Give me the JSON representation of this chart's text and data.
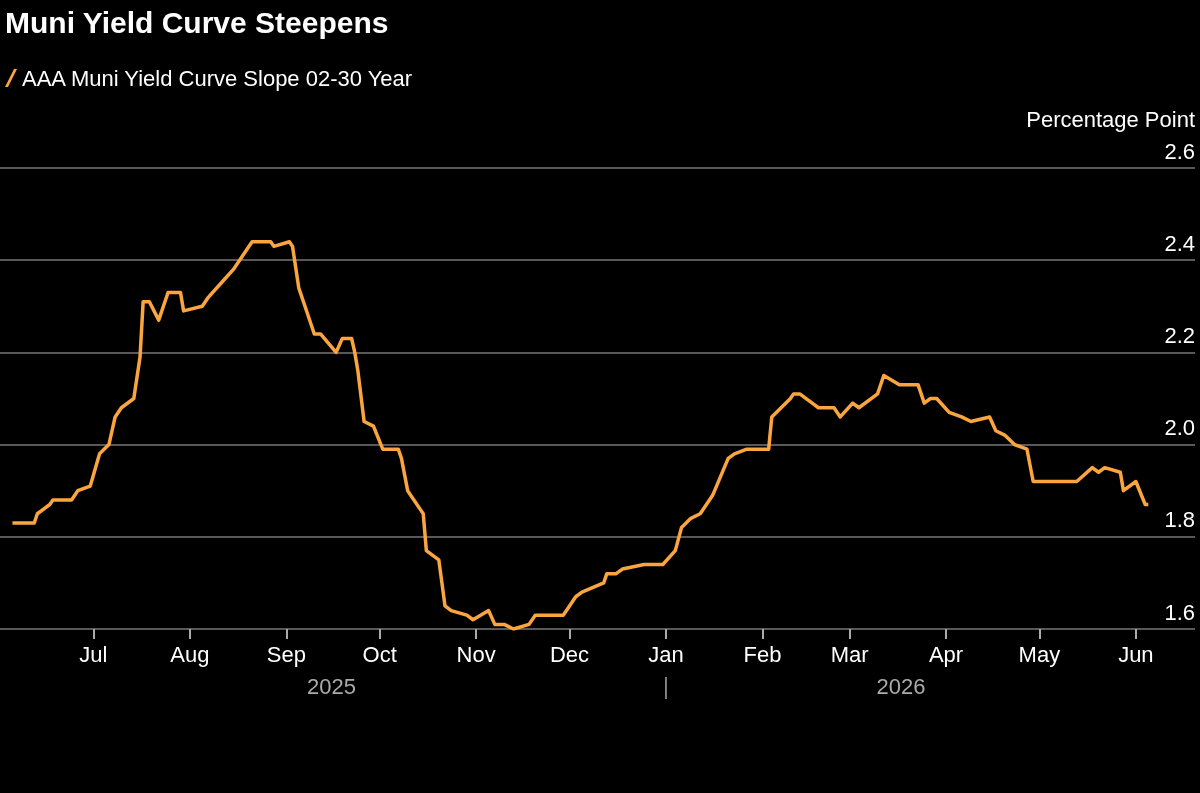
{
  "chart_data": {
    "type": "line",
    "title": "Muni Yield Curve Steepens",
    "ylabel": "Percentage Point",
    "x": [
      "2025-06-05",
      "2025-06-12",
      "2025-06-13",
      "2025-06-17",
      "2025-06-18",
      "2025-06-24",
      "2025-06-26",
      "2025-06-30",
      "2025-07-03",
      "2025-07-06",
      "2025-07-08",
      "2025-07-10",
      "2025-07-14",
      "2025-07-16",
      "2025-07-17",
      "2025-07-19",
      "2025-07-22",
      "2025-07-25",
      "2025-07-29",
      "2025-07-30",
      "2025-08-05",
      "2025-08-07",
      "2025-08-11",
      "2025-08-15",
      "2025-08-19",
      "2025-08-21",
      "2025-08-27",
      "2025-08-28",
      "2025-09-02",
      "2025-09-03",
      "2025-09-05",
      "2025-09-07",
      "2025-09-10",
      "2025-09-12",
      "2025-09-17",
      "2025-09-19",
      "2025-09-22",
      "2025-09-23",
      "2025-09-24",
      "2025-09-26",
      "2025-09-29",
      "2025-10-02",
      "2025-10-07",
      "2025-10-08",
      "2025-10-10",
      "2025-10-14",
      "2025-10-15",
      "2025-10-16",
      "2025-10-20",
      "2025-10-22",
      "2025-10-24",
      "2025-10-29",
      "2025-10-31",
      "2025-11-05",
      "2025-11-07",
      "2025-11-10",
      "2025-11-13",
      "2025-11-18",
      "2025-11-20",
      "2025-11-25",
      "2025-11-29",
      "2025-12-03",
      "2025-12-05",
      "2025-12-12",
      "2025-12-13",
      "2025-12-16",
      "2025-12-18",
      "2025-12-25",
      "2025-12-31",
      "2026-01-04",
      "2026-01-06",
      "2026-01-09",
      "2026-01-12",
      "2026-01-16",
      "2026-01-21",
      "2026-01-23",
      "2026-01-27",
      "2026-02-03",
      "2026-02-04",
      "2026-02-10",
      "2026-02-11",
      "2026-02-13",
      "2026-02-17",
      "2026-02-19",
      "2026-02-24",
      "2026-02-26",
      "2026-03-02",
      "2026-03-04",
      "2026-03-10",
      "2026-03-12",
      "2026-03-17",
      "2026-03-23",
      "2026-03-25",
      "2026-03-27",
      "2026-03-29",
      "2026-04-02",
      "2026-04-06",
      "2026-04-09",
      "2026-04-15",
      "2026-04-17",
      "2026-04-20",
      "2026-04-23",
      "2026-04-27",
      "2026-04-29",
      "2026-05-06",
      "2026-05-07",
      "2026-05-13",
      "2026-05-18",
      "2026-05-20",
      "2026-05-22",
      "2026-05-27",
      "2026-05-28",
      "2026-06-01",
      "2026-06-04",
      "2026-06-05"
    ],
    "series": [
      {
        "name": "AAA Muni Yield Curve Slope 02-30 Year",
        "color": "#fba53f",
        "values": [
          1.83,
          1.83,
          1.85,
          1.87,
          1.88,
          1.88,
          1.9,
          1.91,
          1.98,
          2.0,
          2.06,
          2.08,
          2.1,
          2.19,
          2.31,
          2.31,
          2.27,
          2.33,
          2.33,
          2.29,
          2.3,
          2.32,
          2.35,
          2.38,
          2.42,
          2.44,
          2.44,
          2.43,
          2.44,
          2.43,
          2.34,
          2.3,
          2.24,
          2.24,
          2.2,
          2.23,
          2.23,
          2.2,
          2.16,
          2.05,
          2.04,
          1.99,
          1.99,
          1.97,
          1.9,
          1.86,
          1.85,
          1.77,
          1.75,
          1.65,
          1.64,
          1.63,
          1.62,
          1.64,
          1.61,
          1.61,
          1.6,
          1.61,
          1.63,
          1.63,
          1.63,
          1.67,
          1.68,
          1.7,
          1.72,
          1.72,
          1.73,
          1.74,
          1.74,
          1.77,
          1.82,
          1.84,
          1.85,
          1.89,
          1.97,
          1.98,
          1.99,
          1.99,
          2.06,
          2.1,
          2.11,
          2.11,
          2.09,
          2.08,
          2.08,
          2.06,
          2.09,
          2.08,
          2.11,
          2.15,
          2.13,
          2.13,
          2.09,
          2.1,
          2.1,
          2.07,
          2.06,
          2.05,
          2.06,
          2.03,
          2.02,
          2.0,
          1.99,
          1.92,
          1.92,
          1.92,
          1.92,
          1.95,
          1.94,
          1.95,
          1.94,
          1.9,
          1.92,
          1.87,
          1.87
        ]
      }
    ],
    "xlim": [
      "2025-06-01",
      "2026-06-20"
    ],
    "xticks": [
      {
        "value": "2025-07-01",
        "label": "Jul"
      },
      {
        "value": "2025-08-01",
        "label": "Aug"
      },
      {
        "value": "2025-09-01",
        "label": "Sep"
      },
      {
        "value": "2025-10-01",
        "label": "Oct"
      },
      {
        "value": "2025-11-01",
        "label": "Nov"
      },
      {
        "value": "2025-12-01",
        "label": "Dec"
      },
      {
        "value": "2026-01-01",
        "label": "Jan"
      },
      {
        "value": "2026-02-01",
        "label": "Feb"
      },
      {
        "value": "2026-03-01",
        "label": "Mar"
      },
      {
        "value": "2026-04-01",
        "label": "Apr"
      },
      {
        "value": "2026-05-01",
        "label": "May"
      },
      {
        "value": "2026-06-01",
        "label": "Jun"
      }
    ],
    "ylim": [
      1.6,
      2.6
    ],
    "yticks": [
      1.6,
      1.8,
      {
        "value": 2,
        "label": "2.0"
      },
      2.2,
      2.4,
      2.6
    ],
    "annotations": [
      "2025",
      "2026"
    ],
    "grid": "y",
    "legend": "top left",
    "marker": "none",
    "line_style": "solid"
  }
}
